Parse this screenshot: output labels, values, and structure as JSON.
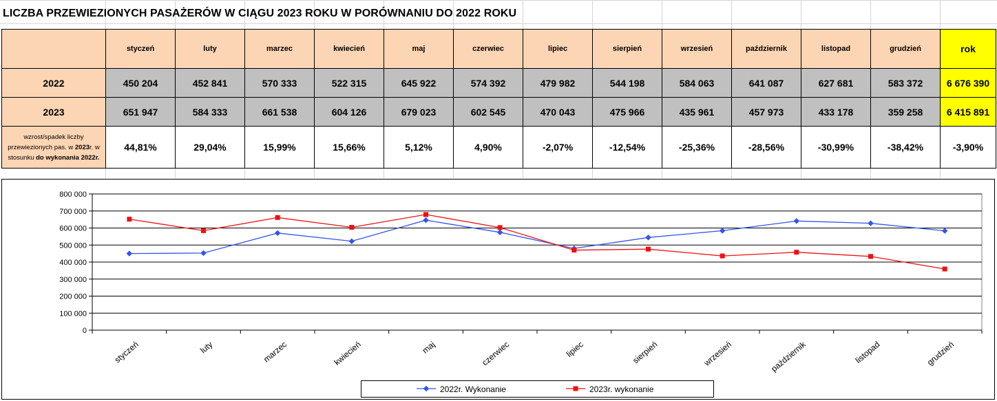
{
  "title": "LICZBA PRZEWIEZIONYCH PASAŻERÓW  W CIĄGU 2023 ROKU W PORÓWNANIU DO 2022 ROKU",
  "table": {
    "months": [
      "styczeń",
      "luty",
      "marzec",
      "kwiecień",
      "maj",
      "czerwiec",
      "lipiec",
      "sierpień",
      "wrzesień",
      "październik",
      "listopad",
      "grudzień"
    ],
    "total_header": "rok",
    "rows": [
      {
        "label": "2022",
        "values": [
          "450 204",
          "452 841",
          "570 333",
          "522 315",
          "645 922",
          "574 392",
          "479 982",
          "544 198",
          "584 063",
          "641 087",
          "627 681",
          "583 372"
        ],
        "total": "6 676 390"
      },
      {
        "label": "2023",
        "values": [
          "651 947",
          "584 333",
          "661 538",
          "604 126",
          "679 023",
          "602 545",
          "470 043",
          "475 966",
          "435 961",
          "457 973",
          "433 178",
          "359 258"
        ],
        "total": "6 415 891"
      }
    ],
    "change_label_parts": {
      "a": "wzrost/spadek liczby przewiezionych pas. w ",
      "b": "2023",
      "c": "r. w stosunku ",
      "d": "do wykonania 2022r."
    },
    "change_values": [
      "44,81%",
      "29,04%",
      "15,99%",
      "15,66%",
      "5,12%",
      "4,90%",
      "-2,07%",
      "-12,54%",
      "-25,36%",
      "-28,56%",
      "-30,99%",
      "-38,42%"
    ],
    "change_total": "-3,90%"
  },
  "chart_data": {
    "type": "line",
    "categories": [
      "styczeń",
      "luty",
      "marzec",
      "kwiecień",
      "maj",
      "czerwiec",
      "lipiec",
      "sierpień",
      "wrzesień",
      "październik",
      "listopad",
      "grudzień"
    ],
    "series": [
      {
        "name": "2022r. Wykonanie",
        "color": "#3355ee",
        "marker": "diamond",
        "values": [
          450204,
          452841,
          570333,
          522315,
          645922,
          574392,
          479982,
          544198,
          584063,
          641087,
          627681,
          583372
        ]
      },
      {
        "name": "2023r. wykonanie",
        "color": "#ee1111",
        "marker": "square",
        "values": [
          651947,
          584333,
          661538,
          604126,
          679023,
          602545,
          470043,
          475966,
          435961,
          457973,
          433178,
          359258
        ]
      }
    ],
    "ylim": [
      0,
      800000
    ],
    "yticks": [
      0,
      100000,
      200000,
      300000,
      400000,
      500000,
      600000,
      700000,
      800000
    ],
    "ytick_labels": [
      "0",
      "100 000",
      "200 000",
      "300 000",
      "400 000",
      "500 000",
      "600 000",
      "700 000",
      "800 000"
    ],
    "grid": true,
    "legend": "bottom",
    "title": "",
    "xlabel": "",
    "ylabel": ""
  }
}
